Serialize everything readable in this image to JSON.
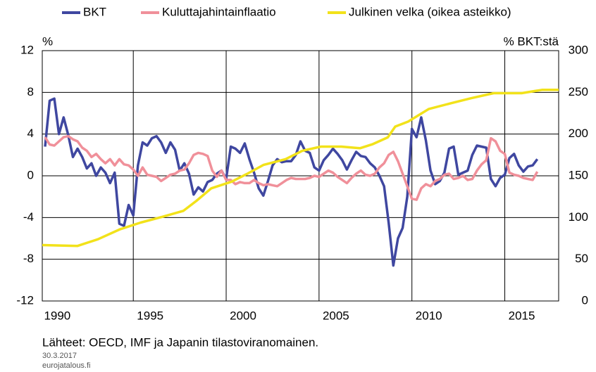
{
  "chart_data": {
    "type": "line",
    "y_label": "%",
    "y2_label": "% BKT:stä",
    "source": "Lähteet: OECD, IMF ja Japanin tilastoviranomainen.",
    "date": "30.3.2017",
    "site": "eurojatalous.fi",
    "xlim": [
      1990.1,
      2017.9
    ],
    "xticks": [
      {
        "value": 1990,
        "label": "1990"
      },
      {
        "value": 1995,
        "label": "1995"
      },
      {
        "value": 2000,
        "label": "2000"
      },
      {
        "value": 2005,
        "label": "2005"
      },
      {
        "value": 2010,
        "label": "2010"
      },
      {
        "value": 2015,
        "label": "2015"
      }
    ],
    "ylim": [
      -12,
      12
    ],
    "yticks": [
      -12,
      -8,
      -4,
      0,
      4,
      8,
      12
    ],
    "y2lim": [
      0,
      300
    ],
    "y2ticks": [
      0,
      50,
      100,
      150,
      200,
      250,
      300
    ],
    "grid": true,
    "x": [
      1990.25,
      1990.5,
      1990.75,
      1991,
      1991.25,
      1991.5,
      1991.75,
      1992,
      1992.25,
      1992.5,
      1992.75,
      1993,
      1993.25,
      1993.5,
      1993.75,
      1994,
      1994.25,
      1994.5,
      1994.75,
      1995,
      1995.25,
      1995.5,
      1995.75,
      1996,
      1996.25,
      1996.5,
      1996.75,
      1997,
      1997.25,
      1997.5,
      1997.75,
      1998,
      1998.25,
      1998.5,
      1998.75,
      1999,
      1999.25,
      1999.5,
      1999.75,
      2000,
      2000.25,
      2000.5,
      2000.75,
      2001,
      2001.25,
      2001.5,
      2001.75,
      2002,
      2002.25,
      2002.5,
      2002.75,
      2003,
      2003.25,
      2003.5,
      2003.75,
      2004,
      2004.25,
      2004.5,
      2004.75,
      2005,
      2005.25,
      2005.5,
      2005.75,
      2006,
      2006.25,
      2006.5,
      2006.75,
      2007,
      2007.25,
      2007.5,
      2007.75,
      2008,
      2008.25,
      2008.5,
      2008.75,
      2009,
      2009.25,
      2009.5,
      2009.75,
      2010,
      2010.25,
      2010.5,
      2010.75,
      2011,
      2011.25,
      2011.5,
      2011.75,
      2012,
      2012.25,
      2012.5,
      2012.75,
      2013,
      2013.25,
      2013.5,
      2013.75,
      2014,
      2014.25,
      2014.5,
      2014.75,
      2015,
      2015.25,
      2015.5,
      2015.75,
      2016,
      2016.25,
      2016.5,
      2016.75
    ],
    "series": [
      {
        "name": "BKT",
        "color": "#3f47a0",
        "values": [
          2.8,
          7.2,
          7.4,
          4.0,
          5.6,
          3.9,
          1.8,
          2.6,
          1.8,
          0.7,
          1.2,
          0,
          0.8,
          0.3,
          -0.7,
          0.3,
          -4.6,
          -4.8,
          -2.8,
          -3.8,
          1.0,
          3.2,
          2.9,
          3.6,
          3.8,
          3.2,
          2.2,
          3.2,
          2.5,
          0.5,
          1.2,
          0.2,
          -1.8,
          -1.1,
          -1.5,
          -0.6,
          -0.4,
          0.2,
          0.5,
          -0.3,
          2.8,
          2.6,
          2.2,
          3.1,
          1.6,
          0.3,
          -1.2,
          -1.9,
          -0.5,
          1.0,
          1.6,
          1.3,
          1.4,
          1.4,
          2.0,
          3.3,
          2.4,
          2.2,
          0.8,
          0.5,
          1.5,
          2.0,
          2.6,
          2.1,
          1.5,
          0.6,
          1.5,
          2.3,
          1.9,
          1.8,
          1.2,
          0.8,
          0.0,
          -1.0,
          -4.5,
          -8.6,
          -6.0,
          -5.0,
          -2.0,
          4.5,
          3.7,
          5.6,
          3.4,
          0.5,
          -0.8,
          -0.5,
          0.3,
          2.6,
          2.8,
          0.1,
          0.3,
          0.5,
          2.0,
          2.9,
          2.8,
          2.7,
          -0.3,
          -1.0,
          -0.2,
          0.1,
          1.7,
          2.1,
          1.0,
          0.4,
          0.9,
          1.0,
          1.6
        ]
      },
      {
        "name": "Kuluttajahintainflaatio",
        "color": "#f0909a",
        "values": [
          3.7,
          3.0,
          2.9,
          3.3,
          3.7,
          3.8,
          3.5,
          3.3,
          2.7,
          2.4,
          1.8,
          2.1,
          1.6,
          1.2,
          1.6,
          1.0,
          1.6,
          1.1,
          1.0,
          0.6,
          0.0,
          0.8,
          0.1,
          0.0,
          -0.1,
          -0.5,
          -0.2,
          0.1,
          0.2,
          0.5,
          0.6,
          1.2,
          2.0,
          2.2,
          2.1,
          1.9,
          0.5,
          -0.1,
          0.5,
          -0.4,
          -0.4,
          -0.8,
          -0.6,
          -0.7,
          -0.7,
          -0.4,
          -0.7,
          -0.9,
          -0.8,
          -0.9,
          -1.0,
          -0.7,
          -0.4,
          -0.2,
          -0.3,
          -0.3,
          -0.3,
          -0.2,
          0.0,
          -0.1,
          0.2,
          0.5,
          0.3,
          -0.1,
          -0.4,
          -0.7,
          -0.2,
          0.2,
          0.5,
          0.1,
          0.0,
          0.2,
          0.8,
          1.2,
          2.0,
          2.3,
          1.4,
          0.2,
          -1.0,
          -2.2,
          -2.3,
          -1.2,
          -0.8,
          -1.0,
          -0.5,
          -0.3,
          0.1,
          0.2,
          -0.3,
          -0.2,
          0.0,
          -0.4,
          -0.3,
          0.5,
          1.1,
          1.5,
          3.6,
          3.3,
          2.4,
          2.1,
          0.3,
          0.1,
          0.0,
          -0.2,
          -0.3,
          -0.4,
          0.4
        ]
      },
      {
        "name": "Julkinen velka (oikea asteikko)",
        "color": "#f2e21a",
        "axis": "y2",
        "x": [
          1990.1,
          1992.0,
          1993.1,
          1994.3,
          1995.4,
          1996.6,
          1997.7,
          1998.4,
          1999.2,
          2000.3,
          2001.1,
          2002.0,
          2003.2,
          2004.1,
          2005.1,
          2006.2,
          2007.2,
          2007.9,
          2008.7,
          2009.1,
          2009.8,
          2010.9,
          2012.1,
          2013.2,
          2014.4,
          2015.9,
          2017.0,
          2017.9
        ],
        "values": [
          67,
          66,
          74,
          86,
          94,
          101,
          108,
          120,
          135,
          143,
          152,
          163,
          170,
          180,
          185,
          185,
          183,
          188,
          196,
          209,
          215,
          230,
          237,
          243,
          249,
          249,
          253,
          253
        ]
      }
    ]
  }
}
